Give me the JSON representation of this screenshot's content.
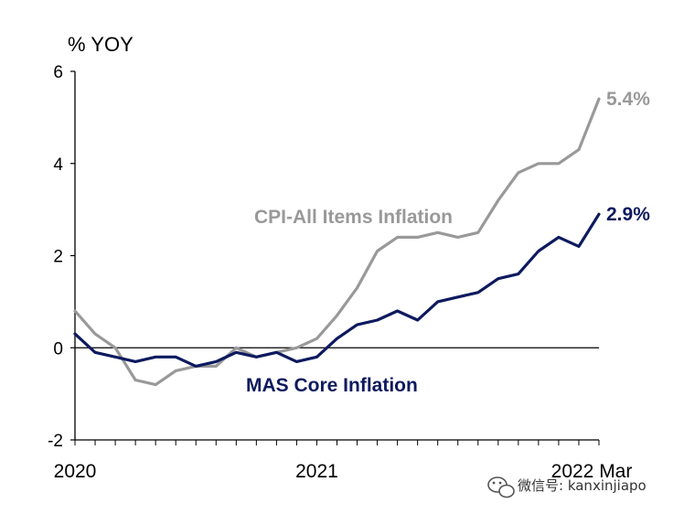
{
  "chart_data": {
    "type": "line",
    "title": "",
    "ylabel": "% YOY",
    "xlabel": "",
    "ylim": [
      -2,
      6
    ],
    "yticks": [
      -2,
      0,
      2,
      4,
      6
    ],
    "grid": false,
    "x_tick_labels": [
      {
        "index": 0,
        "label": "2020"
      },
      {
        "index": 12,
        "label": "2021"
      },
      {
        "index": 26,
        "label": "2022 Mar"
      }
    ],
    "series": [
      {
        "name": "CPI-All Items Inflation",
        "label": "CPI-All Items Inflation",
        "color": "#999999",
        "end_label": "5.4%",
        "values": [
          0.8,
          0.3,
          0.0,
          -0.7,
          -0.8,
          -0.5,
          -0.4,
          -0.4,
          0.0,
          -0.2,
          -0.1,
          0.0,
          0.2,
          0.7,
          1.3,
          2.1,
          2.4,
          2.4,
          2.5,
          2.4,
          2.5,
          3.2,
          3.8,
          4.0,
          4.0,
          4.3,
          5.4
        ]
      },
      {
        "name": "MAS Core Inflation",
        "label": "MAS Core Inflation",
        "color": "#0d1a5e",
        "end_label": "2.9%",
        "values": [
          0.3,
          -0.1,
          -0.2,
          -0.3,
          -0.2,
          -0.2,
          -0.4,
          -0.3,
          -0.1,
          -0.2,
          -0.1,
          -0.3,
          -0.2,
          0.2,
          0.5,
          0.6,
          0.8,
          0.6,
          1.0,
          1.1,
          1.2,
          1.5,
          1.6,
          2.1,
          2.4,
          2.2,
          2.9
        ]
      }
    ]
  },
  "watermark": {
    "text": "微信号: kanxinjiapo",
    "icon": "wechat-icon"
  }
}
